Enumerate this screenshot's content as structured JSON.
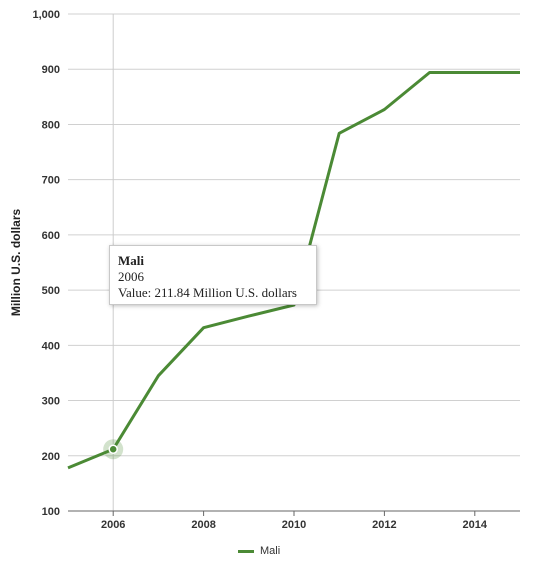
{
  "chart_data": {
    "type": "line",
    "title": "",
    "xlabel": "",
    "ylabel": "Million U.S. dollars",
    "xlim": [
      2005,
      2015
    ],
    "ylim": [
      100,
      1000
    ],
    "x_ticks": [
      2006,
      2008,
      2010,
      2012,
      2014
    ],
    "y_ticks": [
      100,
      200,
      300,
      400,
      500,
      600,
      700,
      800,
      900,
      1000
    ],
    "y_tick_labels": [
      "100",
      "200",
      "300",
      "400",
      "500",
      "600",
      "700",
      "800",
      "900",
      "1,000"
    ],
    "grid": "horizontal",
    "legend": "bottom-center",
    "series": [
      {
        "name": "Mali",
        "color": "#4b8a35",
        "x": [
          2005,
          2006,
          2007,
          2008,
          2009,
          2010,
          2011,
          2012,
          2013,
          2014,
          2015
        ],
        "values": [
          178,
          211.84,
          345,
          432,
          453,
          473,
          784,
          827,
          894,
          894,
          894
        ]
      }
    ],
    "tooltip": {
      "title": "Mali",
      "year": "2006",
      "value_text": "Value: 211.84 Million U.S. dollars",
      "x": 2006,
      "y": 211.84
    }
  }
}
